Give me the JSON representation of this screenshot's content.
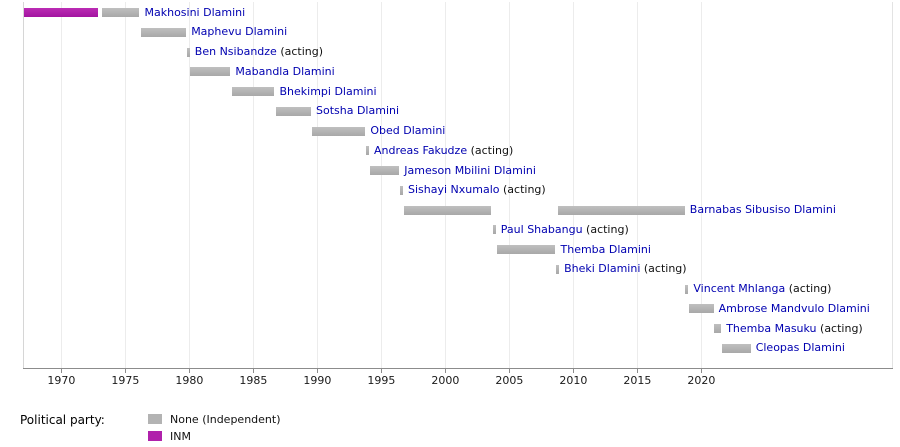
{
  "legend": {
    "title": "Political party:"
  },
  "chart_data": {
    "type": "timeline",
    "axis": {
      "start_year": 1967,
      "ticks": [
        1970,
        1975,
        1980,
        1985,
        1990,
        1995,
        2000,
        2005,
        2010,
        2015,
        2020
      ]
    },
    "party_colors": {
      "None": "#b3b3b3",
      "INM": "#b021ab"
    },
    "label_color": "#0000b0",
    "legend_items": [
      {
        "label": "None (Independent)",
        "party": "None"
      },
      {
        "label": "INM",
        "party": "INM"
      }
    ],
    "rows": [
      {
        "name": "Makhosini Dlamini",
        "suffix": "",
        "terms": [
          {
            "start": 1967.05,
            "end": 1972.9,
            "party": "INM"
          },
          {
            "start": 1973.15,
            "end": 1976.1,
            "party": "None"
          }
        ]
      },
      {
        "name": "Maphevu Dlamini",
        "suffix": "",
        "terms": [
          {
            "start": 1976.25,
            "end": 1979.75,
            "party": "None"
          }
        ]
      },
      {
        "name": "Ben Nsibandze",
        "suffix": " (acting)",
        "terms": [
          {
            "start": 1979.8,
            "end": 1980.0,
            "party": "None"
          }
        ]
      },
      {
        "name": "Mabandla Dlamini",
        "suffix": "",
        "terms": [
          {
            "start": 1980.05,
            "end": 1983.2,
            "party": "None"
          }
        ]
      },
      {
        "name": "Bhekimpi Dlamini",
        "suffix": "",
        "terms": [
          {
            "start": 1983.3,
            "end": 1986.65,
            "party": "None"
          }
        ]
      },
      {
        "name": "Sotsha Dlamini",
        "suffix": "",
        "terms": [
          {
            "start": 1986.75,
            "end": 1989.5,
            "party": "None"
          }
        ]
      },
      {
        "name": "Obed Dlamini",
        "suffix": "",
        "terms": [
          {
            "start": 1989.6,
            "end": 1993.75,
            "party": "None"
          }
        ]
      },
      {
        "name": "Andreas Fakudze",
        "suffix": " (acting)",
        "terms": [
          {
            "start": 1993.8,
            "end": 1994.0,
            "party": "None"
          }
        ]
      },
      {
        "name": "Jameson Mbilini Dlamini",
        "suffix": "",
        "terms": [
          {
            "start": 1994.1,
            "end": 1996.4,
            "party": "None"
          }
        ]
      },
      {
        "name": "Sishayi Nxumalo",
        "suffix": " (acting)",
        "terms": [
          {
            "start": 1996.45,
            "end": 1996.65,
            "party": "None"
          }
        ]
      },
      {
        "name": "Barnabas Sibusiso Dlamini",
        "suffix": "",
        "terms": [
          {
            "start": 1996.75,
            "end": 2003.6,
            "party": "None"
          },
          {
            "start": 2008.8,
            "end": 2018.7,
            "party": "None"
          }
        ]
      },
      {
        "name": "Paul Shabangu",
        "suffix": " (acting)",
        "terms": [
          {
            "start": 2003.7,
            "end": 2003.9,
            "party": "None"
          }
        ]
      },
      {
        "name": "Themba Dlamini",
        "suffix": "",
        "terms": [
          {
            "start": 2004.0,
            "end": 2008.6,
            "party": "None"
          }
        ]
      },
      {
        "name": "Bheki Dlamini",
        "suffix": " (acting)",
        "terms": [
          {
            "start": 2008.65,
            "end": 2008.78,
            "party": "None"
          }
        ]
      },
      {
        "name": "Vincent Mhlanga",
        "suffix": " (acting)",
        "terms": [
          {
            "start": 2018.75,
            "end": 2018.95,
            "party": "None"
          }
        ]
      },
      {
        "name": "Ambrose Mandvulo Dlamini",
        "suffix": "",
        "terms": [
          {
            "start": 2019.0,
            "end": 2020.95,
            "party": "None"
          }
        ]
      },
      {
        "name": "Themba Masuku",
        "suffix": " (acting)",
        "terms": [
          {
            "start": 2021.0,
            "end": 2021.55,
            "party": "None"
          }
        ]
      },
      {
        "name": "Cleopas Dlamini",
        "suffix": "",
        "terms": [
          {
            "start": 2021.6,
            "end": 2023.85,
            "party": "None"
          }
        ]
      }
    ]
  }
}
